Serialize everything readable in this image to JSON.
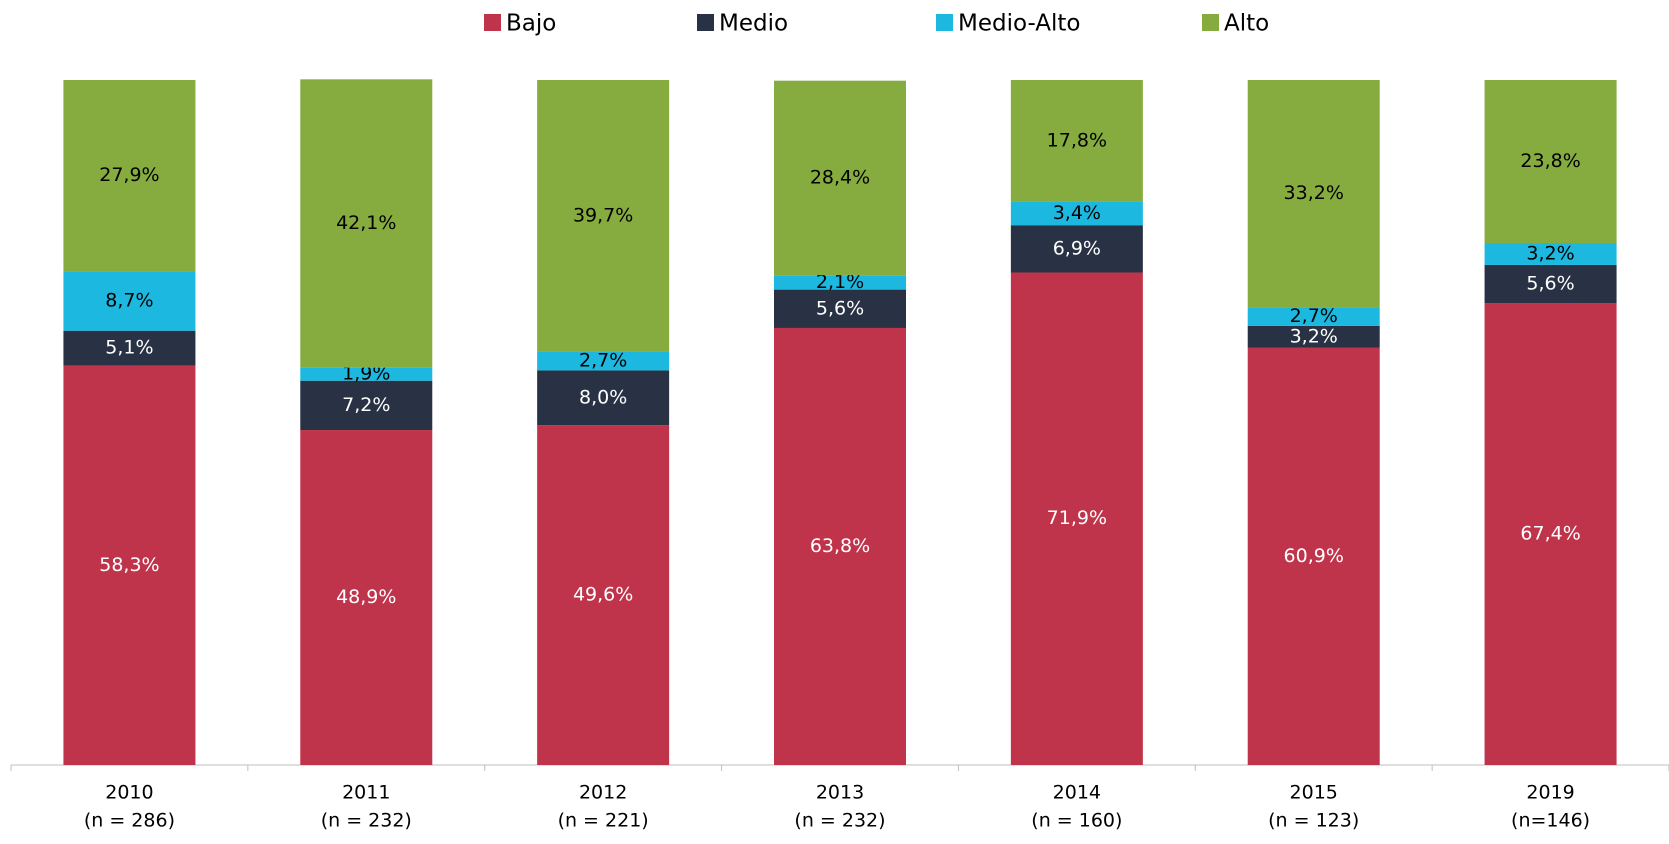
{
  "chart_data": {
    "type": "stacked_bar",
    "categories": [
      [
        "2010",
        "(n = 286)"
      ],
      [
        "2011",
        "(n = 232)"
      ],
      [
        "2012",
        "(n = 221)"
      ],
      [
        "2013",
        "(n = 232)"
      ],
      [
        "2014",
        "(n = 160)"
      ],
      [
        "2015",
        "(n = 123)"
      ],
      [
        "2019",
        "(n=146)"
      ]
    ],
    "ylim": [
      0,
      100
    ],
    "legend": "top",
    "series": [
      {
        "name": "Bajo",
        "color": "#c0344b",
        "values": [
          58.3,
          48.9,
          49.6,
          63.8,
          71.9,
          60.9,
          67.4
        ],
        "value_labels": [
          "58,3%",
          "48,9%",
          "49,6%",
          "63,8%",
          "71,9%",
          "60,9%",
          "67,4%"
        ]
      },
      {
        "name": "Medio",
        "color": "#283244",
        "values": [
          5.1,
          7.2,
          8.0,
          5.6,
          6.9,
          3.2,
          5.6
        ],
        "value_labels": [
          "5,1%",
          "7,2%",
          "8,0%",
          "5,6%",
          "6,9%",
          "3,2%",
          "5,6%"
        ]
      },
      {
        "name": "Medio-Alto",
        "color": "#1cb8df",
        "values": [
          8.7,
          1.9,
          2.7,
          2.1,
          3.4,
          2.7,
          3.2
        ],
        "value_labels": [
          "8,7%",
          "1,9%",
          "2,7%",
          "2,1%",
          "3,4%",
          "2,7%",
          "3,2%"
        ]
      },
      {
        "name": "Alto",
        "color": "#86ab3f",
        "values": [
          27.9,
          42.1,
          39.7,
          28.4,
          17.8,
          33.2,
          23.8
        ],
        "value_labels": [
          "27,9%",
          "42,1%",
          "39,7%",
          "28,4%",
          "17,8%",
          "33,2%",
          "23,8%"
        ]
      }
    ]
  }
}
